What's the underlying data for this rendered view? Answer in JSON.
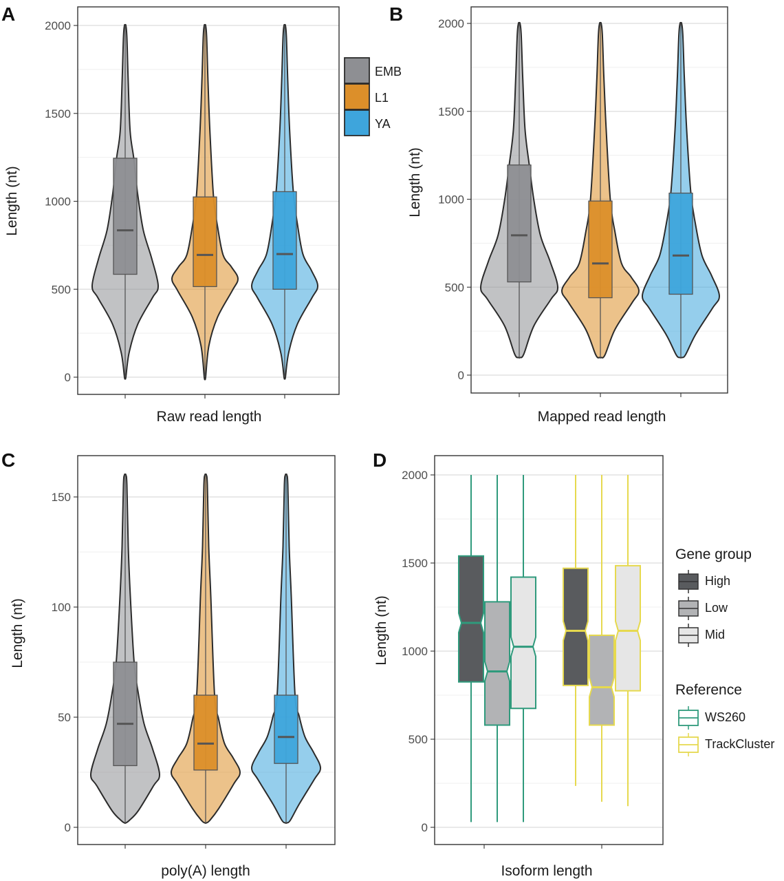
{
  "colors": {
    "EMB": "#8e8f93",
    "L1": "#dc8f2a",
    "YA": "#3ea5dc",
    "High": "#595b5e",
    "Low": "#b2b3b5",
    "Mid": "#e6e6e6",
    "WS260": "#2f9a7c",
    "TrackCluster": "#e6d94e"
  },
  "panels": {
    "A": {
      "letter": "A",
      "xlabel": "Raw read length",
      "ylabel": "Length (nt)",
      "ticks": [
        "0",
        "500",
        "1000",
        "1500",
        "2000"
      ],
      "legend": {
        "items": [
          "EMB",
          "L1",
          "YA"
        ]
      }
    },
    "B": {
      "letter": "B",
      "xlabel": "Mapped read length",
      "ylabel": "Length (nt)",
      "ticks": [
        "0",
        "500",
        "1000",
        "1500",
        "2000"
      ]
    },
    "C": {
      "letter": "C",
      "xlabel": "poly(A) length",
      "ylabel": "Length (nt)",
      "ticks": [
        "0",
        "50",
        "100",
        "150"
      ]
    },
    "D": {
      "letter": "D",
      "xlabel": "Isoform  length",
      "ylabel": "Length (nt)",
      "ticks": [
        "0",
        "500",
        "1000",
        "1500",
        "2000"
      ],
      "legend": {
        "gene_title": "Gene group",
        "gene_items": [
          "High",
          "Low",
          "Mid"
        ],
        "ref_title": "Reference",
        "ref_items": [
          "WS260",
          "TrackCluster"
        ]
      }
    }
  },
  "chart_data": [
    {
      "panel": "A",
      "type": "violin",
      "xlabel": "Raw read length",
      "ylabel": "Length (nt)",
      "ylim": [
        0,
        2000
      ],
      "groups": [
        {
          "name": "EMB",
          "min": 0,
          "q1": 585,
          "median": 835,
          "q3": 1245,
          "max": 2000,
          "mode": 520
        },
        {
          "name": "L1",
          "min": 0,
          "q1": 515,
          "median": 695,
          "q3": 1025,
          "max": 2000,
          "mode": 560
        },
        {
          "name": "YA",
          "min": 0,
          "q1": 500,
          "median": 700,
          "q3": 1055,
          "max": 2000,
          "mode": 520
        }
      ]
    },
    {
      "panel": "B",
      "type": "violin",
      "xlabel": "Mapped read length",
      "ylabel": "Length (nt)",
      "ylim": [
        0,
        2000
      ],
      "groups": [
        {
          "name": "EMB",
          "min": 100,
          "q1": 530,
          "median": 795,
          "q3": 1195,
          "max": 2000,
          "mode": 500
        },
        {
          "name": "L1",
          "min": 100,
          "q1": 440,
          "median": 635,
          "q3": 990,
          "max": 2000,
          "mode": 480
        },
        {
          "name": "YA",
          "min": 100,
          "q1": 460,
          "median": 680,
          "q3": 1035,
          "max": 2000,
          "mode": 450
        }
      ]
    },
    {
      "panel": "C",
      "type": "violin",
      "xlabel": "poly(A) length",
      "ylabel": "Length (nt)",
      "ylim": [
        0,
        160
      ],
      "groups": [
        {
          "name": "EMB",
          "min": 2,
          "q1": 28,
          "median": 47,
          "q3": 75,
          "max": 160,
          "mode": 24
        },
        {
          "name": "L1",
          "min": 2,
          "q1": 26,
          "median": 38,
          "q3": 60,
          "max": 160,
          "mode": 25
        },
        {
          "name": "YA",
          "min": 2,
          "q1": 29,
          "median": 41,
          "q3": 60,
          "max": 160,
          "mode": 27
        }
      ]
    },
    {
      "panel": "D",
      "type": "boxplot",
      "xlabel": "Isoform  length",
      "ylabel": "Length (nt)",
      "ylim": [
        0,
        2000
      ],
      "boxes": [
        {
          "reference": "WS260",
          "gene_group": "High",
          "min": 30,
          "q1": 825,
          "median": 1160,
          "q3": 1540,
          "max": 2000
        },
        {
          "reference": "WS260",
          "gene_group": "Low",
          "min": 30,
          "q1": 580,
          "median": 885,
          "q3": 1280,
          "max": 2000
        },
        {
          "reference": "WS260",
          "gene_group": "Mid",
          "min": 30,
          "q1": 675,
          "median": 1025,
          "q3": 1420,
          "max": 2000
        },
        {
          "reference": "TrackCluster",
          "gene_group": "High",
          "min": 235,
          "q1": 805,
          "median": 1115,
          "q3": 1470,
          "max": 2000
        },
        {
          "reference": "TrackCluster",
          "gene_group": "Low",
          "min": 145,
          "q1": 580,
          "median": 795,
          "q3": 1090,
          "max": 2000
        },
        {
          "reference": "TrackCluster",
          "gene_group": "Mid",
          "min": 120,
          "q1": 775,
          "median": 1115,
          "q3": 1485,
          "max": 2000
        }
      ]
    }
  ]
}
